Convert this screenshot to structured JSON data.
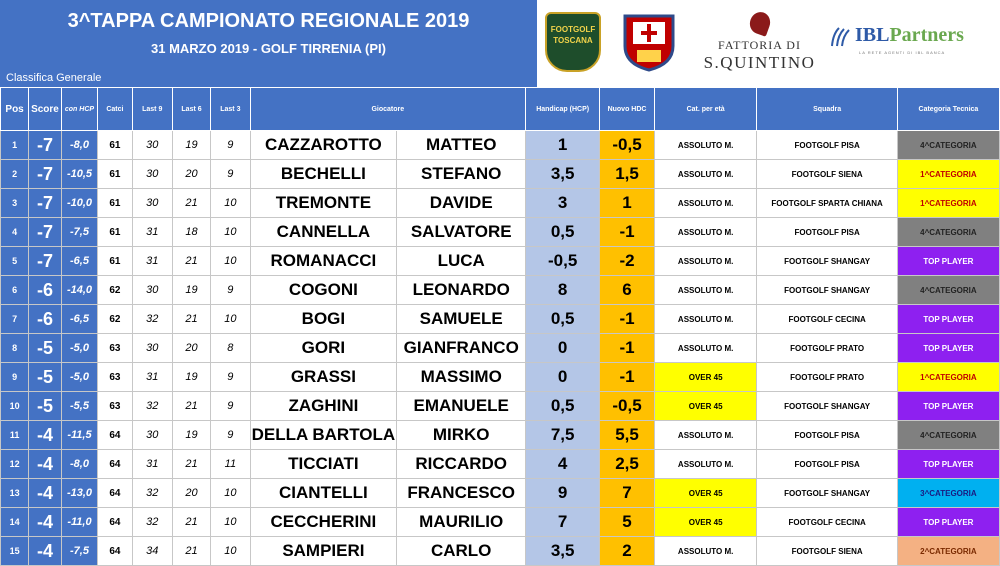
{
  "header": {
    "title": "3^TAPPA CAMPIONATO REGIONALE 2019",
    "subtitle": "31 MARZO 2019 - GOLF TIRRENIA (PI)",
    "section": "Classifica Generale"
  },
  "logos": {
    "footgolf_text": "FOOTGOLF TOSCANA",
    "fattoria_line1": "FATTORIA DI",
    "fattoria_line2": "S.QUINTINO",
    "ibl_name": "IBL",
    "ibl_name2": "Partners",
    "ibl_tagline": "LA RETE AGENTI DI IBL BANCA"
  },
  "columns": [
    "Pos",
    "Score",
    "con HCP",
    "Catci",
    "Last 9",
    "Last 6",
    "Last 3",
    "Giocatore",
    "Handicap (HCP)",
    "Nuovo HDC",
    "Cat. per età",
    "Squadra",
    "Categoria Tecnica"
  ],
  "colors": {
    "header_blue": "#4472c4",
    "handicap_fill": "#b4c6e7",
    "new_hdc_fill": "#ffc000",
    "over45_fill": "#ffff00",
    "cat4_fill": "#808080",
    "cat1_fill": "#ffff00",
    "top_player_fill": "#8e20f0",
    "cat3_fill": "#00b0f0",
    "cat2_fill": "#f4b183"
  },
  "rows": [
    {
      "pos": "1",
      "score": "-7",
      "hcp": "-8,0",
      "catci": "61",
      "l9": "30",
      "l6": "19",
      "l3": "9",
      "cognome": "CAZZAROTTO",
      "nome": "MATTEO",
      "handicap": "1",
      "nuovo": "-0,5",
      "eta": "ASSOLUTO M.",
      "squadra": "FOOTGOLF PISA",
      "categoria": "4^CATEGORIA",
      "cat_class": "c4",
      "eta_class": ""
    },
    {
      "pos": "2",
      "score": "-7",
      "hcp": "-10,5",
      "catci": "61",
      "l9": "30",
      "l6": "20",
      "l3": "9",
      "cognome": "BECHELLI",
      "nome": "STEFANO",
      "handicap": "3,5",
      "nuovo": "1,5",
      "eta": "ASSOLUTO M.",
      "squadra": "FOOTGOLF SIENA",
      "categoria": "1^CATEGORIA",
      "cat_class": "c1",
      "eta_class": ""
    },
    {
      "pos": "3",
      "score": "-7",
      "hcp": "-10,0",
      "catci": "61",
      "l9": "30",
      "l6": "21",
      "l3": "10",
      "cognome": "TREMONTE",
      "nome": "DAVIDE",
      "handicap": "3",
      "nuovo": "1",
      "eta": "ASSOLUTO M.",
      "squadra": "FOOTGOLF SPARTA CHIANA",
      "categoria": "1^CATEGORIA",
      "cat_class": "c1",
      "eta_class": ""
    },
    {
      "pos": "4",
      "score": "-7",
      "hcp": "-7,5",
      "catci": "61",
      "l9": "31",
      "l6": "18",
      "l3": "10",
      "cognome": "CANNELLA",
      "nome": "SALVATORE",
      "handicap": "0,5",
      "nuovo": "-1",
      "eta": "ASSOLUTO M.",
      "squadra": "FOOTGOLF PISA",
      "categoria": "4^CATEGORIA",
      "cat_class": "c4",
      "eta_class": ""
    },
    {
      "pos": "5",
      "score": "-7",
      "hcp": "-6,5",
      "catci": "61",
      "l9": "31",
      "l6": "21",
      "l3": "10",
      "cognome": "ROMANACCI",
      "nome": "LUCA",
      "handicap": "-0,5",
      "nuovo": "-2",
      "eta": "ASSOLUTO M.",
      "squadra": "FOOTGOLF SHANGAY",
      "categoria": "TOP PLAYER",
      "cat_class": "tp",
      "eta_class": ""
    },
    {
      "pos": "6",
      "score": "-6",
      "hcp": "-14,0",
      "catci": "62",
      "l9": "30",
      "l6": "19",
      "l3": "9",
      "cognome": "COGONI",
      "nome": "LEONARDO",
      "handicap": "8",
      "nuovo": "6",
      "eta": "ASSOLUTO M.",
      "squadra": "FOOTGOLF SHANGAY",
      "categoria": "4^CATEGORIA",
      "cat_class": "c4",
      "eta_class": ""
    },
    {
      "pos": "7",
      "score": "-6",
      "hcp": "-6,5",
      "catci": "62",
      "l9": "32",
      "l6": "21",
      "l3": "10",
      "cognome": "BOGI",
      "nome": "SAMUELE",
      "handicap": "0,5",
      "nuovo": "-1",
      "eta": "ASSOLUTO M.",
      "squadra": "FOOTGOLF CECINA",
      "categoria": "TOP PLAYER",
      "cat_class": "tp",
      "eta_class": ""
    },
    {
      "pos": "8",
      "score": "-5",
      "hcp": "-5,0",
      "catci": "63",
      "l9": "30",
      "l6": "20",
      "l3": "8",
      "cognome": "GORI",
      "nome": "GIANFRANCO",
      "handicap": "0",
      "nuovo": "-1",
      "eta": "ASSOLUTO M.",
      "squadra": "FOOTGOLF PRATO",
      "categoria": "TOP PLAYER",
      "cat_class": "tp",
      "eta_class": ""
    },
    {
      "pos": "9",
      "score": "-5",
      "hcp": "-5,0",
      "catci": "63",
      "l9": "31",
      "l6": "19",
      "l3": "9",
      "cognome": "GRASSI",
      "nome": "MASSIMO",
      "handicap": "0",
      "nuovo": "-1",
      "eta": "OVER 45",
      "squadra": "FOOTGOLF PRATO",
      "categoria": "1^CATEGORIA",
      "cat_class": "c1",
      "eta_class": "over"
    },
    {
      "pos": "10",
      "score": "-5",
      "hcp": "-5,5",
      "catci": "63",
      "l9": "32",
      "l6": "21",
      "l3": "9",
      "cognome": "ZAGHINI",
      "nome": "EMANUELE",
      "handicap": "0,5",
      "nuovo": "-0,5",
      "eta": "OVER 45",
      "squadra": "FOOTGOLF SHANGAY",
      "categoria": "TOP PLAYER",
      "cat_class": "tp",
      "eta_class": "over"
    },
    {
      "pos": "11",
      "score": "-4",
      "hcp": "-11,5",
      "catci": "64",
      "l9": "30",
      "l6": "19",
      "l3": "9",
      "cognome": "DELLA BARTOLA",
      "nome": "MIRKO",
      "handicap": "7,5",
      "nuovo": "5,5",
      "eta": "ASSOLUTO M.",
      "squadra": "FOOTGOLF PISA",
      "categoria": "4^CATEGORIA",
      "cat_class": "c4",
      "eta_class": ""
    },
    {
      "pos": "12",
      "score": "-4",
      "hcp": "-8,0",
      "catci": "64",
      "l9": "31",
      "l6": "21",
      "l3": "11",
      "cognome": "TICCIATI",
      "nome": "RICCARDO",
      "handicap": "4",
      "nuovo": "2,5",
      "eta": "ASSOLUTO M.",
      "squadra": "FOOTGOLF PISA",
      "categoria": "TOP PLAYER",
      "cat_class": "tp",
      "eta_class": ""
    },
    {
      "pos": "13",
      "score": "-4",
      "hcp": "-13,0",
      "catci": "64",
      "l9": "32",
      "l6": "20",
      "l3": "10",
      "cognome": "CIANTELLI",
      "nome": "FRANCESCO",
      "handicap": "9",
      "nuovo": "7",
      "eta": "OVER 45",
      "squadra": "FOOTGOLF SHANGAY",
      "categoria": "3^CATEGORIA",
      "cat_class": "c3",
      "eta_class": "over"
    },
    {
      "pos": "14",
      "score": "-4",
      "hcp": "-11,0",
      "catci": "64",
      "l9": "32",
      "l6": "21",
      "l3": "10",
      "cognome": "CECCHERINI",
      "nome": "MAURILIO",
      "handicap": "7",
      "nuovo": "5",
      "eta": "OVER 45",
      "squadra": "FOOTGOLF CECINA",
      "categoria": "TOP PLAYER",
      "cat_class": "tp",
      "eta_class": "over"
    },
    {
      "pos": "15",
      "score": "-4",
      "hcp": "-7,5",
      "catci": "64",
      "l9": "34",
      "l6": "21",
      "l3": "10",
      "cognome": "SAMPIERI",
      "nome": "CARLO",
      "handicap": "3,5",
      "nuovo": "2",
      "eta": "ASSOLUTO M.",
      "squadra": "FOOTGOLF SIENA",
      "categoria": "2^CATEGORIA",
      "cat_class": "c2",
      "eta_class": ""
    }
  ]
}
